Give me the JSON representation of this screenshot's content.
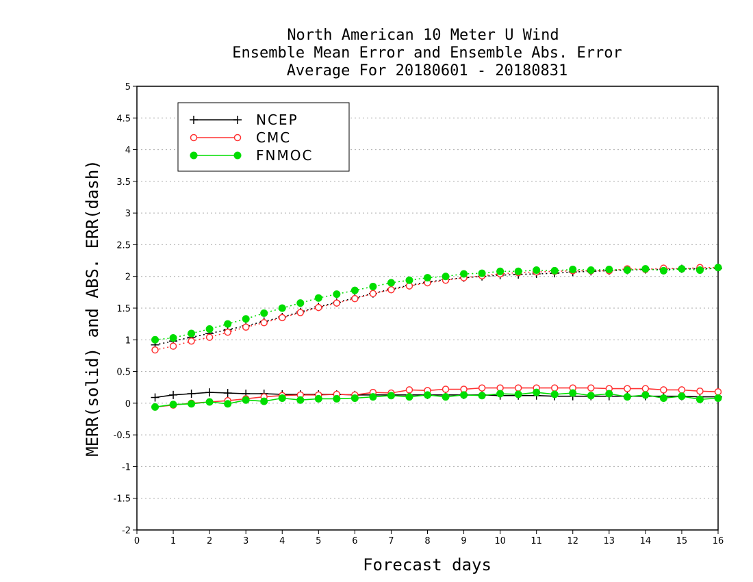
{
  "chart_data": {
    "type": "line",
    "title": [
      "North American 10 Meter U Wind",
      "Ensemble Mean Error and Ensemble Abs. Error",
      "Average For 20180601 - 20180831"
    ],
    "xlabel": "Forecast days",
    "ylabel": "MERR(solid) and ABS. ERR(dash)",
    "xlim": [
      0,
      16
    ],
    "ylim": [
      -2,
      5
    ],
    "x_ticks": [
      "0",
      "1",
      "2",
      "3",
      "4",
      "5",
      "6",
      "7",
      "8",
      "9",
      "10",
      "11",
      "12",
      "13",
      "14",
      "15",
      "16"
    ],
    "y_ticks": [
      "5",
      "4.5",
      "4",
      "3.5",
      "3",
      "2.5",
      "2",
      "1.5",
      "1",
      "0.5",
      "0",
      "-0.5",
      "-1",
      "-1.5",
      "-2"
    ],
    "grid": "horizontal dotted",
    "legend_position": "top-left",
    "x": [
      0.5,
      1,
      1.5,
      2,
      2.5,
      3,
      3.5,
      4,
      4.5,
      5,
      5.5,
      6,
      6.5,
      7,
      7.5,
      8,
      8.5,
      9,
      9.5,
      10,
      10.5,
      11,
      11.5,
      12,
      12.5,
      13,
      13.5,
      14,
      14.5,
      15,
      15.5,
      16
    ],
    "series": [
      {
        "name": "NCEP",
        "color": "#000000",
        "marker": "plus",
        "merr": [
          0.09,
          0.13,
          0.15,
          0.17,
          0.16,
          0.15,
          0.15,
          0.14,
          0.14,
          0.14,
          0.14,
          0.13,
          0.13,
          0.13,
          0.13,
          0.13,
          0.13,
          0.13,
          0.13,
          0.12,
          0.12,
          0.12,
          0.11,
          0.11,
          0.11,
          0.11,
          0.11,
          0.11,
          0.11,
          0.11,
          0.1,
          0.1
        ],
        "abs_err": [
          0.92,
          0.98,
          1.04,
          1.1,
          1.16,
          1.22,
          1.29,
          1.36,
          1.44,
          1.52,
          1.59,
          1.66,
          1.73,
          1.8,
          1.86,
          1.91,
          1.95,
          1.98,
          2.0,
          2.02,
          2.03,
          2.04,
          2.05,
          2.07,
          2.08,
          2.09,
          2.1,
          2.11,
          2.11,
          2.12,
          2.12,
          2.13
        ]
      },
      {
        "name": "CMC",
        "color": "#ff3333",
        "marker": "open-circle",
        "merr": [
          -0.06,
          -0.03,
          0.0,
          0.02,
          0.04,
          0.07,
          0.1,
          0.12,
          0.13,
          0.13,
          0.14,
          0.13,
          0.17,
          0.16,
          0.21,
          0.2,
          0.22,
          0.22,
          0.24,
          0.24,
          0.24,
          0.24,
          0.24,
          0.24,
          0.24,
          0.23,
          0.23,
          0.23,
          0.21,
          0.21,
          0.19,
          0.18
        ],
        "abs_err": [
          0.84,
          0.9,
          0.98,
          1.04,
          1.12,
          1.2,
          1.27,
          1.35,
          1.43,
          1.51,
          1.58,
          1.65,
          1.73,
          1.79,
          1.85,
          1.9,
          1.94,
          1.98,
          2.01,
          2.04,
          2.06,
          2.07,
          2.08,
          2.09,
          2.09,
          2.09,
          2.12,
          2.11,
          2.13,
          2.12,
          2.14,
          2.14
        ]
      },
      {
        "name": "FNMOC",
        "color": "#00dd00",
        "marker": "filled-circle",
        "merr": [
          -0.06,
          -0.02,
          -0.01,
          0.02,
          -0.01,
          0.05,
          0.03,
          0.08,
          0.05,
          0.07,
          0.07,
          0.08,
          0.1,
          0.12,
          0.1,
          0.13,
          0.1,
          0.13,
          0.12,
          0.15,
          0.14,
          0.17,
          0.14,
          0.16,
          0.12,
          0.15,
          0.1,
          0.13,
          0.08,
          0.11,
          0.06,
          0.08
        ],
        "abs_err": [
          1.0,
          1.03,
          1.1,
          1.17,
          1.25,
          1.33,
          1.42,
          1.5,
          1.58,
          1.66,
          1.72,
          1.78,
          1.84,
          1.9,
          1.94,
          1.98,
          2.0,
          2.04,
          2.05,
          2.08,
          2.08,
          2.1,
          2.09,
          2.11,
          2.1,
          2.11,
          2.1,
          2.12,
          2.09,
          2.12,
          2.1,
          2.14
        ]
      }
    ]
  }
}
